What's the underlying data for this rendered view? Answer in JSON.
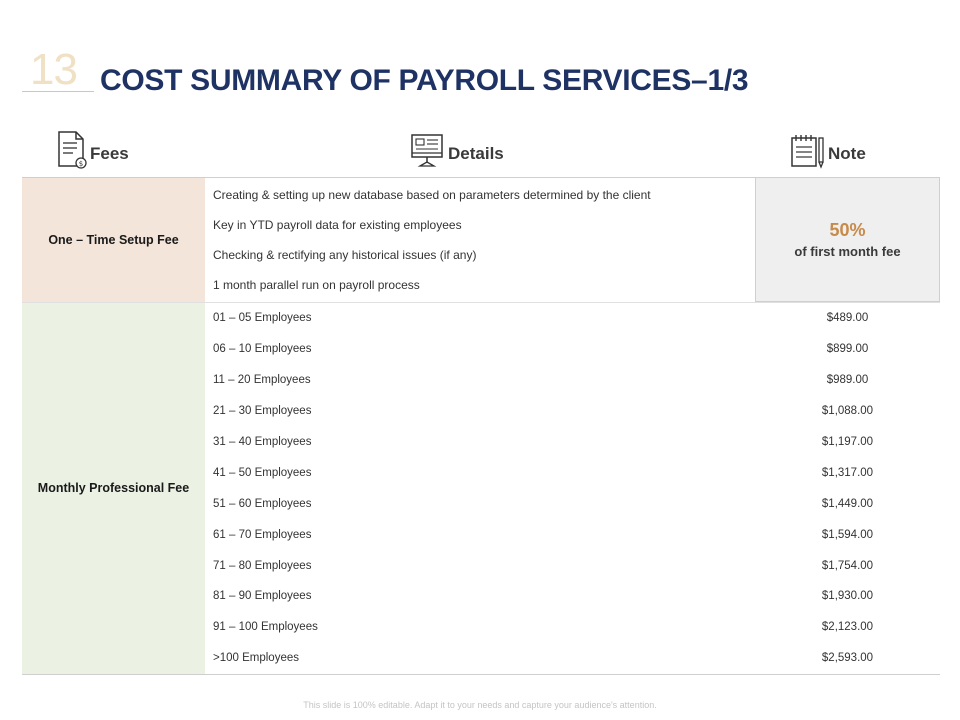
{
  "slide": {
    "number": "13",
    "title": "COST SUMMARY OF PAYROLL SERVICES–1/3"
  },
  "headers": {
    "fees": "Fees",
    "details": "Details",
    "note": "Note"
  },
  "icons": {
    "fees": "document-dollar-icon",
    "details": "computer-monitor-icon",
    "note": "notepad-pencil-icon"
  },
  "setup_fee": {
    "label": "One – Time Setup Fee",
    "details": [
      "Creating & setting up new database based on parameters determined by the client",
      "Key in YTD payroll data for existing employees",
      "Checking & rectifying any historical issues (if any)",
      "1 month parallel run on payroll process"
    ],
    "note_percent": "50%",
    "note_text": "of first month fee"
  },
  "monthly_fee": {
    "label": "Monthly Professional Fee",
    "rows": [
      {
        "range": "01 – 05 Employees",
        "price": "$489.00"
      },
      {
        "range": "06 – 10 Employees",
        "price": "$899.00"
      },
      {
        "range": "11 – 20 Employees",
        "price": "$989.00"
      },
      {
        "range": "21 – 30 Employees",
        "price": "$1,088.00"
      },
      {
        "range": "31 – 40 Employees",
        "price": "$1,197.00"
      },
      {
        "range": "41 – 50 Employees",
        "price": "$1,317.00"
      },
      {
        "range": "51 – 60 Employees",
        "price": "$1,449.00"
      },
      {
        "range": "61 – 70 Employees",
        "price": "$1,594.00"
      },
      {
        "range": "71 – 80 Employees",
        "price": "$1,754.00"
      },
      {
        "range": "81 – 90 Employees",
        "price": "$1,930.00"
      },
      {
        "range": "91 – 100 Employees",
        "price": "$2,123.00"
      },
      {
        "range": ">100 Employees",
        "price": "$2,593.00"
      }
    ]
  },
  "colors": {
    "title": "#1f3264",
    "accent": "#c88a4a",
    "setup_bg": "#f3e5da",
    "monthly_bg": "#ebf2e3",
    "note_bg": "#efefef"
  },
  "footer": "This slide is 100% editable. Adapt it to your needs and capture your audience's attention."
}
